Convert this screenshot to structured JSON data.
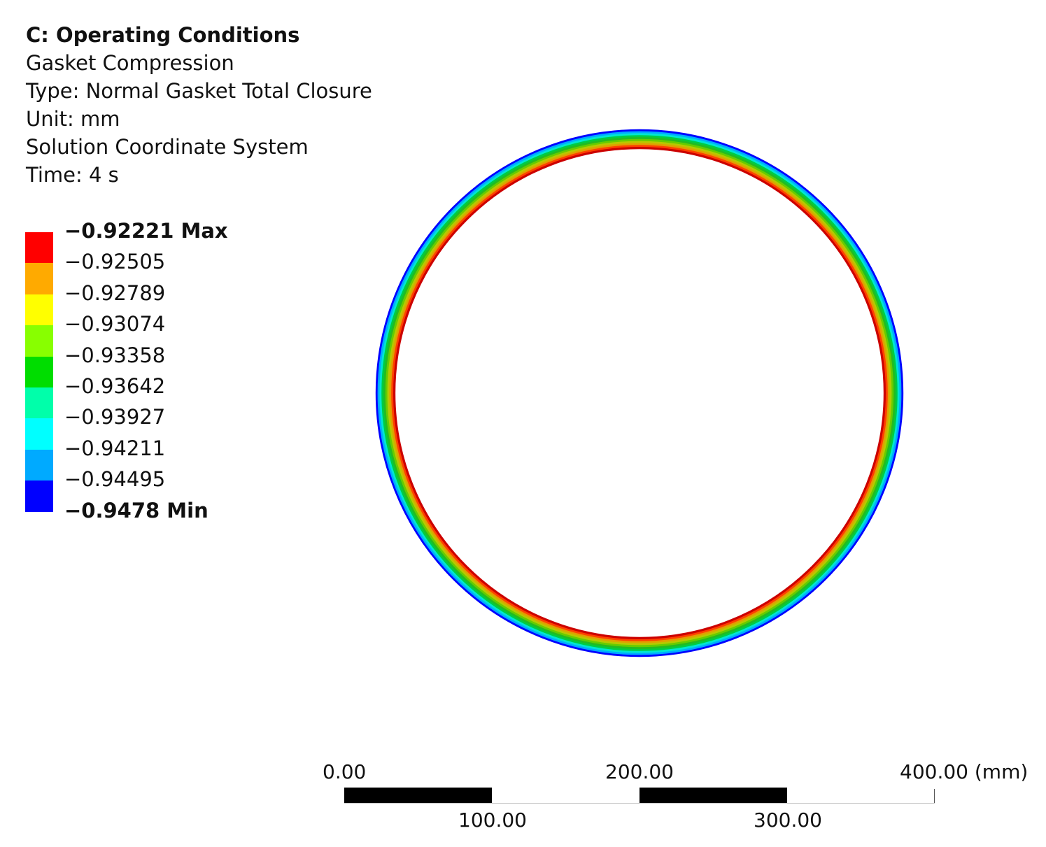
{
  "header": {
    "title": "C: Operating Conditions",
    "result_name": "Gasket Compression",
    "type": "Type: Normal Gasket Total Closure",
    "unit": "Unit: mm",
    "coordinate_system": "Solution Coordinate System",
    "time": "Time: 4 s"
  },
  "legend": {
    "labels": [
      "−0.92221 Max",
      "−0.92505",
      "−0.92789",
      "−0.93074",
      "−0.93358",
      "−0.93642",
      "−0.93927",
      "−0.94211",
      "−0.94495",
      "−0.9478 Min"
    ],
    "colors": [
      "#ff0000",
      "#ffaa00",
      "#ffff00",
      "#88ff00",
      "#00dd00",
      "#00ffaa",
      "#00ffff",
      "#00aaff",
      "#0000ff"
    ]
  },
  "gasket": {
    "band_colors_outer_to_inner": [
      "#0000ff",
      "#00aaff",
      "#00e6d2",
      "#00cc44",
      "#22bb22",
      "#66cc00",
      "#b8c800",
      "#e0a000",
      "#ff4000",
      "#cc0000"
    ]
  },
  "scale_bar": {
    "labels_top": [
      "0.00",
      "200.00",
      "400.00 (mm)"
    ],
    "labels_bottom": [
      "100.00",
      "300.00"
    ]
  }
}
